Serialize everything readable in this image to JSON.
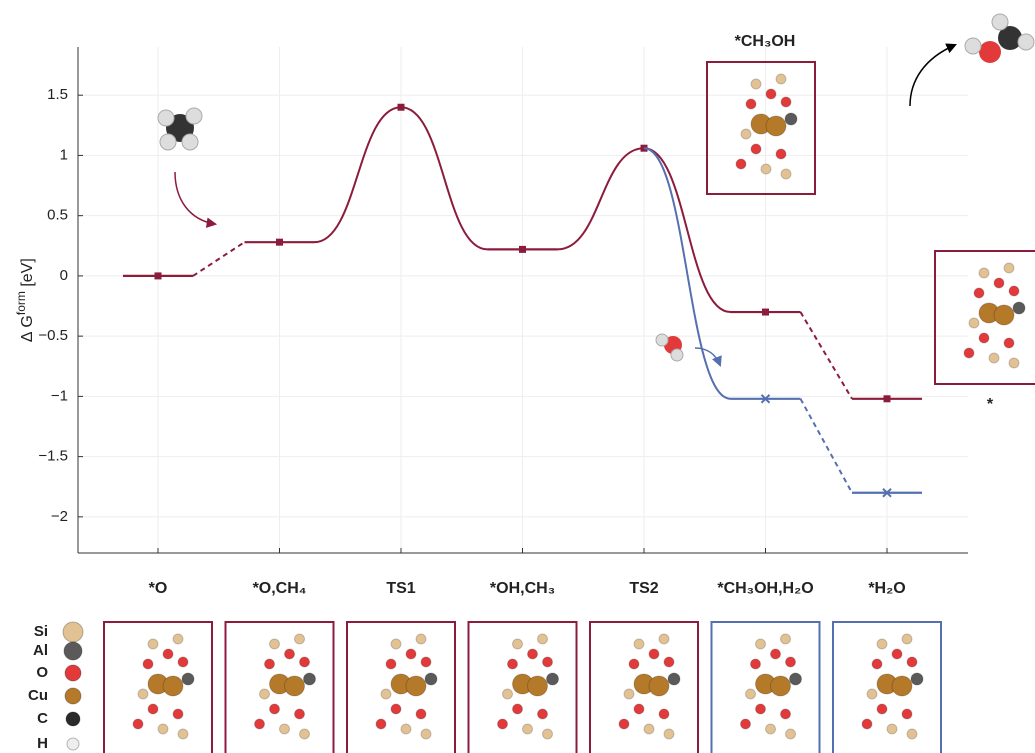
{
  "chart_data": {
    "type": "energy-profile",
    "y_label": {
      "prefix": "∆ G",
      "sup": "form",
      "unit": " [eV]"
    },
    "categories": [
      "*O",
      "*O,CH₄",
      "TS1",
      "*OH,CH₃",
      "TS2",
      "*CH₃OH,H₂O",
      "*H₂O"
    ],
    "series": [
      {
        "color": "#8c1c3c",
        "marker": "square",
        "values": [
          0,
          0.28,
          1.4,
          0.22,
          1.06,
          -0.3,
          -1.02
        ],
        "connectors": [
          "dashed",
          "solid",
          "solid",
          "solid",
          "solid",
          "dashed"
        ]
      },
      {
        "color": "#5470b0",
        "marker": "x",
        "values": [
          null,
          null,
          null,
          null,
          1.06,
          -1.02,
          -1.8
        ],
        "connectors": [
          null,
          null,
          null,
          null,
          "solid",
          "dashed"
        ]
      }
    ],
    "ylim": [
      -2.3,
      1.9
    ],
    "yticks": [
      {
        "value": -2,
        "label": "−2"
      },
      {
        "value": -1.5,
        "label": "−1.5"
      },
      {
        "value": -1,
        "label": "−1"
      },
      {
        "value": -0.5,
        "label": "−0.5"
      },
      0,
      0.5,
      1,
      1.5
    ],
    "grid": true
  },
  "annotations": {
    "top_structure": "*CH₃OH",
    "right_structure": "*"
  },
  "legend": {
    "elements": [
      {
        "symbol": "Si",
        "color": "#e2c292"
      },
      {
        "symbol": "Al",
        "color": "#5a5a5a"
      },
      {
        "symbol": "O",
        "color": "#e23a3a"
      },
      {
        "symbol": "Cu",
        "color": "#b5792a"
      },
      {
        "symbol": "C",
        "color": "#2a2a2a"
      },
      {
        "symbol": "H",
        "color": "#eeeeee"
      }
    ]
  }
}
